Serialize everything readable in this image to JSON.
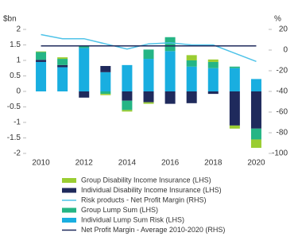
{
  "chart_data": {
    "type": "bar",
    "y_label": "$bn",
    "y2_label": "%",
    "categories": [
      "2010",
      null,
      "2012",
      null,
      "2014",
      null,
      "2016",
      null,
      "2018",
      null,
      "2020"
    ],
    "ylim": [
      -2,
      2
    ],
    "yticks": [
      2,
      1.5,
      1,
      0.5,
      0,
      -0.5,
      -1,
      -1.5,
      -2
    ],
    "y2lim": [
      -100,
      20
    ],
    "y2ticks": [
      20,
      0,
      -20,
      -40,
      -60,
      -80,
      -100
    ],
    "series": [
      {
        "name": "Group Disability Income Insurance (LHS)",
        "type": "bar",
        "color": "#9acd32",
        "values": [
          0.02,
          0.05,
          0,
          -0.04,
          -0.05,
          -0.05,
          0,
          0.17,
          0.08,
          -0.1,
          -0.27
        ]
      },
      {
        "name": "Individual Disability Income Insurance (LHS)",
        "type": "bar",
        "color": "#1f2a5c",
        "values": [
          0.07,
          0.07,
          -0.2,
          0.2,
          -0.3,
          -0.35,
          -0.4,
          -0.38,
          -0.08,
          -1.1,
          -1.2
        ]
      },
      {
        "name": "Risk products - Net Profit Margin (RHS)",
        "type": "line",
        "axis": "y2",
        "color": "#4fc3e8",
        "values": [
          15,
          11,
          11,
          6,
          1,
          6,
          7,
          5,
          5,
          -3,
          -11
        ]
      },
      {
        "name": "Group Lump Sum (LHS)",
        "type": "bar",
        "color": "#25b585",
        "values": [
          0.25,
          0.2,
          0.05,
          -0.08,
          -0.3,
          0.3,
          0.45,
          0.2,
          0.2,
          0.05,
          -0.35
        ]
      },
      {
        "name": "Individual Lump Sum Risk (LHS)",
        "type": "bar",
        "color": "#19aee0",
        "values": [
          0.95,
          0.78,
          1.4,
          0.62,
          0.85,
          1.05,
          1.3,
          0.8,
          0.75,
          0.75,
          0.4
        ]
      },
      {
        "name": "Net Profit Margin - Average 2010-2020 (RHS)",
        "type": "line",
        "axis": "y2",
        "color": "#1f2a5c",
        "values": [
          4,
          4,
          4,
          4,
          4,
          4,
          4,
          4,
          4,
          4,
          4
        ]
      }
    ]
  }
}
